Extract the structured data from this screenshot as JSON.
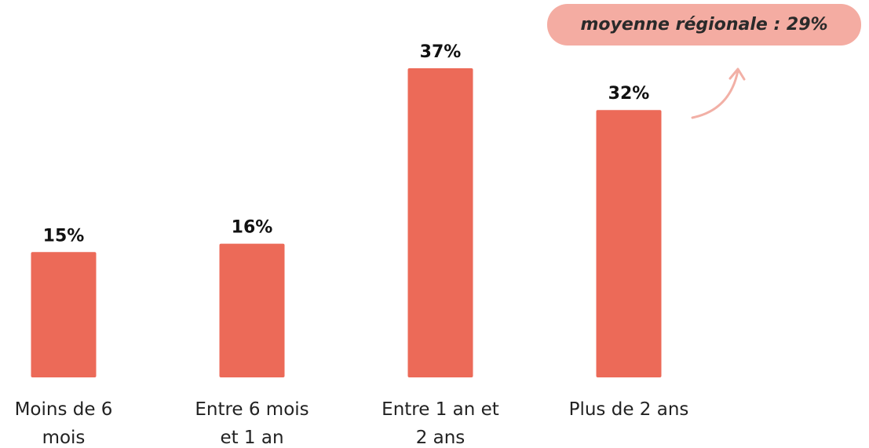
{
  "chart_data": {
    "type": "bar",
    "categories": [
      "Moins de 6 mois",
      "Entre 6 mois et 1 an",
      "Entre 1 an et 2 ans",
      "Plus de 2 ans"
    ],
    "values": [
      15,
      16,
      37,
      32
    ],
    "value_labels": [
      "15%",
      "16%",
      "37%",
      "32%"
    ],
    "color": "#ec6a58",
    "annotation": "moyenne régionale : 29%"
  }
}
